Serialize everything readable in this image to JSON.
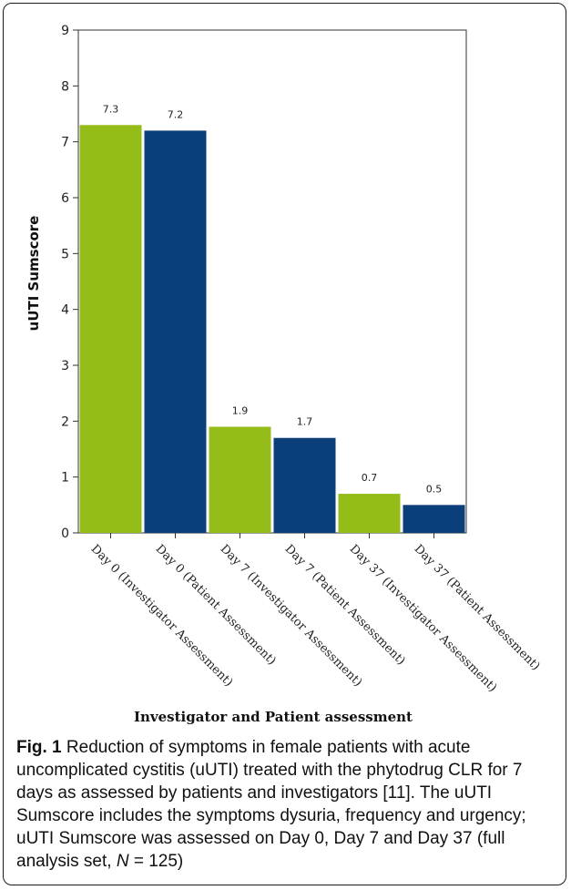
{
  "chart_data": {
    "type": "bar",
    "categories": [
      "Day  0 (Investigator Assessment)",
      "Day  0 (Patient Assessment)",
      "Day  7 (Investigator Assessment)",
      "Day  7 (Patient Assessment)",
      "Day  37 (Investigator Assessment)",
      "Day  37 (Patient Assessment)"
    ],
    "values": [
      7.3,
      7.2,
      1.9,
      1.7,
      0.7,
      0.5
    ],
    "bar_colors": [
      "#95bd1a",
      "#0b3f7a",
      "#95bd1a",
      "#0b3f7a",
      "#95bd1a",
      "#0b3f7a"
    ],
    "data_labels": [
      "7.3",
      "7.2",
      "1.9",
      "1.7",
      "0.7",
      "0.5"
    ],
    "ylabel": "uUTI Sumscore",
    "xlabel": "Investigator and Patient assessment",
    "ylim": [
      0,
      9
    ],
    "yticks": [
      "0",
      "1",
      "2",
      "3",
      "4",
      "5",
      "6",
      "7",
      "8",
      "9"
    ],
    "grid": false,
    "legend": "none"
  },
  "caption": {
    "label": "Fig. 1",
    "text_main": " Reduction of symptoms in female patients with acute uncomplicated cystitis (uUTI) treated with the phytodrug CLR for 7 days as assessed by patients and investigators [11]. The uUTI Sumscore includes the symptoms dysuria, frequency and urgency; uUTI Sumscore was assessed on Day 0, Day 7 and Day 37 (full analysis set, ",
    "n_symbol": "N",
    "n_value": " = 125)"
  }
}
